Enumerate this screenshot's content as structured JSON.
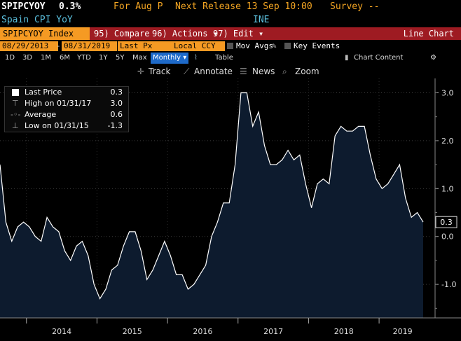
{
  "header": {
    "ticker": "SPIPCYOY",
    "last": "0.3%",
    "for_label": "For Aug P",
    "next_release": "Next Release 13 Sep 10:00",
    "survey": "Survey --",
    "name": "Spain CPI YoY",
    "source": "INE"
  },
  "toolbar": {
    "security": "SPIPCYOY Index",
    "compare": "95) Compare",
    "actions": "96) Actions",
    "edit": "97) Edit",
    "view": "Line Chart"
  },
  "settings": {
    "start_date": "08/29/2013",
    "end_date": "08/31/2019",
    "field": "Last Px",
    "currency": "Local CCY",
    "mov_avgs": "Mov Avgs",
    "key_events": "Key Events"
  },
  "periods": [
    "1D",
    "3D",
    "1M",
    "6M",
    "YTD",
    "1Y",
    "5Y",
    "Max"
  ],
  "frequency": "Monthly",
  "table_label": "Table",
  "chart_content": "Chart Content",
  "tools": {
    "track": "Track",
    "annotate": "Annotate",
    "news": "News",
    "zoom": "Zoom"
  },
  "legend": {
    "last_label": "Last Price",
    "last_value": "0.3",
    "high_label": "High on 01/31/17",
    "high_value": "3.0",
    "avg_label": "Average",
    "avg_value": "0.6",
    "low_label": "Low on 01/31/15",
    "low_value": "-1.3"
  },
  "colors": {
    "accent": "#f59a23",
    "toolbar": "#9e1b22",
    "line": "#ffffff",
    "fill": "#0d1b2e"
  },
  "chart_data": {
    "type": "area",
    "x_labels": [
      "2014",
      "2015",
      "2016",
      "2017",
      "2018",
      "2019"
    ],
    "y_ticks": [
      "3.0",
      "2.0",
      "1.0",
      "0.0",
      "-1.0"
    ],
    "ylim": [
      -1.7,
      3.3
    ],
    "last_marker": "0.3",
    "series": [
      {
        "values": [
          1.5,
          0.3,
          -0.1,
          0.2,
          0.3,
          0.2,
          0.0,
          -0.1,
          0.4,
          0.2,
          0.1,
          -0.3,
          -0.5,
          -0.2,
          -0.1,
          -0.4,
          -1.0,
          -1.3,
          -1.1,
          -0.7,
          -0.6,
          -0.2,
          0.1,
          0.1,
          -0.3,
          -0.9,
          -0.7,
          -0.4,
          -0.1,
          -0.4,
          -0.8,
          -0.8,
          -1.1,
          -1.0,
          -0.8,
          -0.6,
          0.0,
          0.3,
          0.7,
          0.7,
          1.5,
          3.0,
          3.0,
          2.3,
          2.6,
          1.9,
          1.5,
          1.5,
          1.6,
          1.8,
          1.6,
          1.7,
          1.1,
          0.6,
          1.1,
          1.2,
          1.1,
          2.1,
          2.3,
          2.2,
          2.2,
          2.3,
          2.3,
          1.7,
          1.2,
          1.0,
          1.1,
          1.3,
          1.5,
          0.8,
          0.4,
          0.5,
          0.3
        ]
      }
    ]
  }
}
